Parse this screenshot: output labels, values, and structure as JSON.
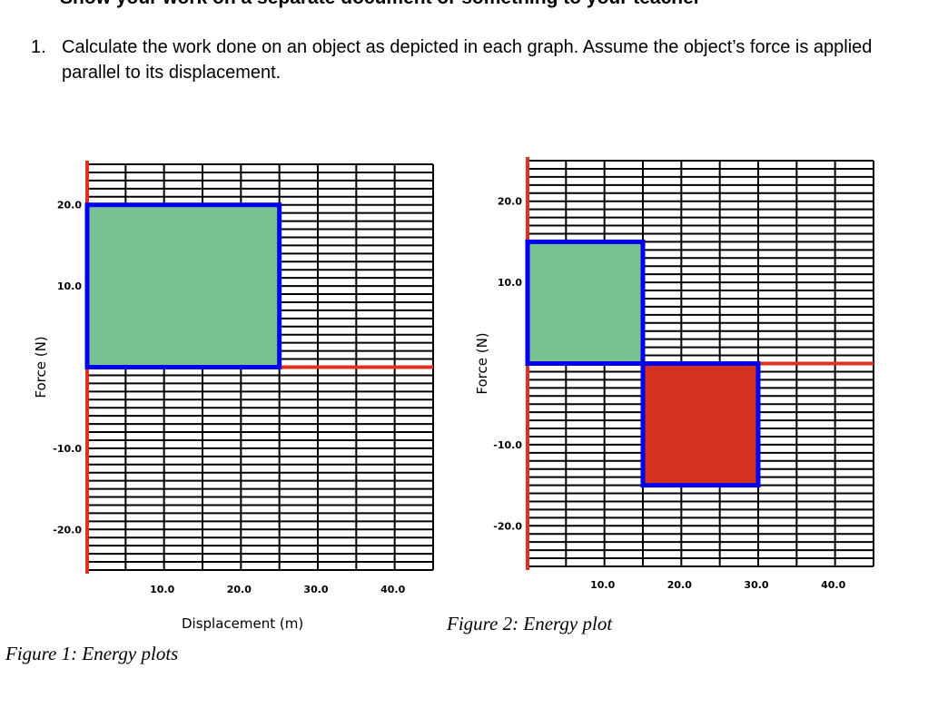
{
  "page": {
    "heading_fragment": "Show your work on a separate document or something to your teacher",
    "question_number": "1.",
    "question_text": "Calculate the work done on an object as depicted in each graph. Assume the object’s force is applied parallel to its displacement."
  },
  "captions": {
    "figure1": "Figure 1: Energy plots",
    "figure2": "Figure 2: Energy plot"
  },
  "chart_data": [
    {
      "type": "area",
      "xlabel": "Displacement (m)",
      "ylabel": "Force (N)",
      "xlim": [
        0,
        45
      ],
      "ylim": [
        -25,
        25
      ],
      "x_ticks": [
        "10.0",
        "20.0",
        "30.0",
        "40.0"
      ],
      "y_ticks": [
        "20.0",
        "10.0",
        "-10.0",
        "-20.0"
      ],
      "grid": true,
      "regions": [
        {
          "x0": 0,
          "x1": 25,
          "y0": 0,
          "y1": 20,
          "fill": "#77c290",
          "outline": "#0000ee"
        }
      ]
    },
    {
      "type": "area",
      "xlabel": "",
      "ylabel": "Force (N)",
      "xlim": [
        0,
        45
      ],
      "ylim": [
        -25,
        25
      ],
      "x_ticks": [
        "10.0",
        "20.0",
        "30.0",
        "40.0"
      ],
      "y_ticks": [
        "20.0",
        "10.0",
        "-10.0",
        "-20.0"
      ],
      "grid": true,
      "regions": [
        {
          "x0": 0,
          "x1": 15,
          "y0": 0,
          "y1": 15,
          "fill": "#77c290",
          "outline": "#0000ee"
        },
        {
          "x0": 15,
          "x1": 30,
          "y0": -15,
          "y1": 0,
          "fill": "#d63020",
          "outline": "#0000ee"
        }
      ]
    }
  ],
  "colors": {
    "axis": "#e03020",
    "grid": "#000000",
    "positive_fill": "#77c290",
    "negative_fill": "#d63020",
    "outline": "#0000ee"
  }
}
